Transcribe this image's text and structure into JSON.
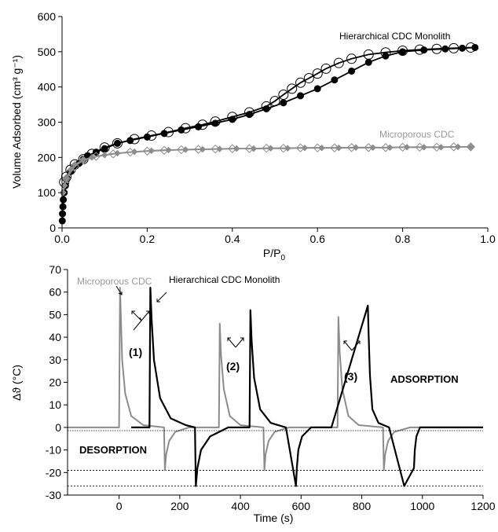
{
  "colors": {
    "black": "#000000",
    "grey": "#8c8c8c",
    "light_grey": "#999999"
  },
  "chart_data": [
    {
      "type": "line",
      "xlabel": "P/P",
      "xlabel_subscript": "0",
      "ylabel": "Volume Adsorbed (cm³ g⁻¹)",
      "xlim": [
        0,
        1.0
      ],
      "ylim": [
        0,
        600
      ],
      "xticks": [
        "0.0",
        "0.2",
        "0.4",
        "0.6",
        "0.8",
        "1.0"
      ],
      "yticks": [
        "0",
        "100",
        "200",
        "300",
        "400",
        "500",
        "600"
      ],
      "grid": false,
      "annotations": [
        "Hierarchical CDC Monolith",
        "Microporous CDC"
      ],
      "series": [
        {
          "name": "Hierarchical CDC Monolith",
          "marker": "filled-circle",
          "color": "#000000",
          "x": [
            0.0005,
            0.001,
            0.002,
            0.003,
            0.005,
            0.008,
            0.012,
            0.02,
            0.03,
            0.04,
            0.05,
            0.06,
            0.08,
            0.1,
            0.13,
            0.16,
            0.2,
            0.24,
            0.28,
            0.32,
            0.36,
            0.4,
            0.44,
            0.48,
            0.52,
            0.56,
            0.6,
            0.64,
            0.68,
            0.72,
            0.76,
            0.8,
            0.85,
            0.9,
            0.94,
            0.97
          ],
          "y": [
            20,
            40,
            60,
            80,
            100,
            120,
            140,
            160,
            175,
            183,
            195,
            205,
            215,
            225,
            240,
            248,
            258,
            268,
            278,
            287,
            297,
            308,
            322,
            338,
            355,
            375,
            395,
            420,
            445,
            470,
            488,
            500,
            505,
            508,
            510,
            512
          ]
        },
        {
          "name": "Hierarchical CDC Monolith",
          "marker": "open-circle",
          "color": "#000000",
          "x": [
            0.005,
            0.01,
            0.02,
            0.03,
            0.05,
            0.07,
            0.1,
            0.13,
            0.17,
            0.21,
            0.25,
            0.29,
            0.33,
            0.36,
            0.4,
            0.44,
            0.48,
            0.5,
            0.52,
            0.54,
            0.56,
            0.58,
            0.6,
            0.62,
            0.65,
            0.68,
            0.72,
            0.76,
            0.8,
            0.84,
            0.88,
            0.92,
            0.96
          ],
          "y": [
            130,
            145,
            165,
            180,
            195,
            210,
            228,
            240,
            252,
            262,
            272,
            283,
            293,
            302,
            315,
            328,
            345,
            360,
            378,
            395,
            412,
            425,
            438,
            452,
            468,
            480,
            492,
            498,
            503,
            506,
            508,
            510,
            512
          ]
        },
        {
          "name": "Microporous CDC",
          "marker": "filled-diamond",
          "color": "#8c8c8c",
          "x": [
            0.003,
            0.006,
            0.01,
            0.02,
            0.03,
            0.05,
            0.07,
            0.1,
            0.13,
            0.17,
            0.21,
            0.25,
            0.29,
            0.33,
            0.37,
            0.41,
            0.45,
            0.49,
            0.53,
            0.57,
            0.61,
            0.65,
            0.69,
            0.73,
            0.77,
            0.81,
            0.85,
            0.89,
            0.93,
            0.96
          ],
          "y": [
            100,
            120,
            140,
            165,
            180,
            193,
            200,
            207,
            212,
            216,
            219,
            221,
            222,
            223,
            224,
            225,
            225,
            226,
            226,
            227,
            227,
            227,
            228,
            228,
            228,
            229,
            229,
            229,
            230,
            230
          ]
        },
        {
          "name": "Microporous CDC",
          "marker": "open-diamond",
          "color": "#8c8c8c",
          "x": [
            0.01,
            0.03,
            0.05,
            0.08,
            0.12,
            0.16,
            0.2,
            0.24,
            0.28,
            0.32,
            0.36,
            0.4,
            0.44,
            0.48,
            0.52,
            0.56,
            0.6,
            0.64,
            0.68,
            0.72,
            0.76,
            0.8,
            0.84,
            0.88,
            0.92,
            0.96
          ],
          "y": [
            140,
            175,
            192,
            203,
            210,
            215,
            218,
            220,
            222,
            223,
            224,
            225,
            225,
            226,
            226,
            227,
            227,
            227,
            228,
            228,
            228,
            229,
            229,
            229,
            230,
            230
          ]
        }
      ]
    },
    {
      "type": "line",
      "xlabel": "Time (s)",
      "ylabel": "Δϑ (°C)",
      "xlim": [
        -170,
        1200
      ],
      "ylim": [
        -30,
        70
      ],
      "xticks": [
        "0",
        "200",
        "400",
        "600",
        "800",
        "1000",
        "1200"
      ],
      "yticks": [
        "-30",
        "-20",
        "-10",
        "0",
        "10",
        "20",
        "30",
        "40",
        "50",
        "60",
        "70"
      ],
      "grid": false,
      "reference_lines": [
        -19,
        -26
      ],
      "annotations": [
        "Microporous CDC",
        "Hierarchical CDC Monolith",
        "(1)",
        "(2)",
        "(3)",
        "ADSORPTION",
        "DESORPTION"
      ],
      "series": [
        {
          "name": "Microporous CDC",
          "color": "#8c8c8c",
          "x": [
            -170,
            0,
            3,
            6,
            10,
            20,
            40,
            80,
            148,
            151,
            155,
            165,
            185,
            230,
            329,
            332,
            336,
            345,
            365,
            400,
            476,
            479,
            483,
            493,
            513,
            560,
            720,
            723,
            727,
            736,
            756,
            790,
            870,
            873,
            877,
            887,
            907,
            960,
            1200
          ],
          "y": [
            0,
            0,
            62,
            48,
            30,
            15,
            5,
            1,
            0,
            -19,
            -12,
            -6,
            -2,
            0,
            0,
            46,
            32,
            17,
            5,
            1,
            0,
            -19,
            -12,
            -6,
            -2,
            0,
            0,
            49,
            34,
            17,
            5,
            1,
            0,
            -19,
            -12,
            -6,
            -2,
            0,
            0
          ]
        },
        {
          "name": "Hierarchical CDC Monolith",
          "color": "#000000",
          "x": [
            40,
            100,
            103,
            107,
            115,
            135,
            170,
            220,
            250,
            253,
            258,
            270,
            300,
            360,
            430,
            433,
            437,
            445,
            465,
            500,
            550,
            583,
            586,
            591,
            603,
            633,
            700,
            820,
            823,
            827,
            835,
            855,
            890,
            940,
            972,
            975,
            980,
            992,
            1022,
            1090,
            1200
          ],
          "y": [
            0,
            0,
            62,
            48,
            30,
            13,
            4,
            1,
            0,
            -26,
            -18,
            -10,
            -4,
            0,
            0,
            52,
            38,
            22,
            8,
            2,
            0,
            -26,
            -18,
            -10,
            -4,
            0,
            0,
            54,
            40,
            23,
            8,
            2,
            0,
            -26,
            -18,
            -10,
            -4,
            0,
            0,
            0,
            0
          ]
        }
      ]
    }
  ]
}
